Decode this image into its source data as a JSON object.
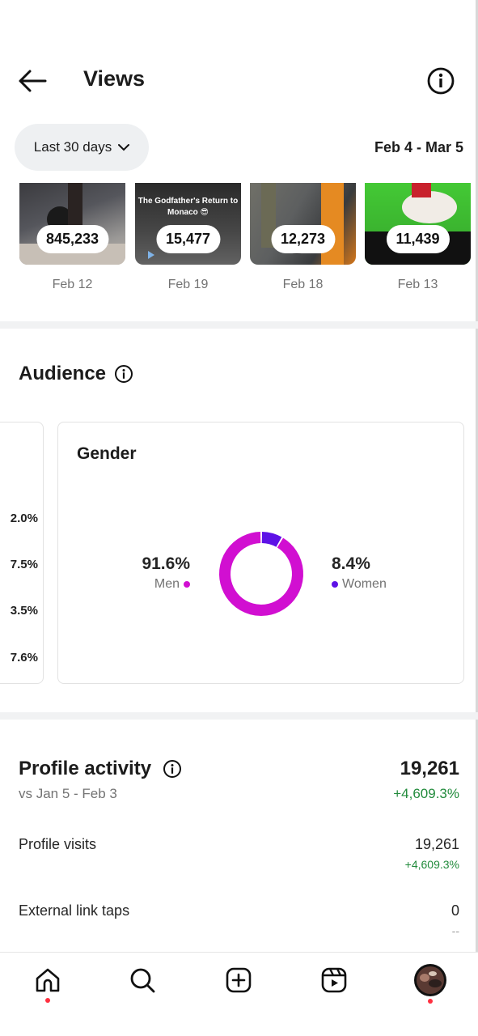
{
  "header": {
    "title": "Views"
  },
  "filter": {
    "range_label": "Last 30 days",
    "date_range": "Feb 4 - Mar 5"
  },
  "thumbnails": [
    {
      "views": "845,233",
      "date": "Feb 12"
    },
    {
      "views": "15,477",
      "date": "Feb 19",
      "caption": "The Godfather's Return to Monaco 😎"
    },
    {
      "views": "12,273",
      "date": "Feb 18"
    },
    {
      "views": "11,439",
      "date": "Feb 13"
    }
  ],
  "audience": {
    "title": "Audience",
    "age_values": [
      "2.0%",
      "7.5%",
      "3.5%",
      "7.6%"
    ],
    "gender": {
      "title": "Gender",
      "men": {
        "pct": "91.6%",
        "label": "Men",
        "value": 91.6,
        "color": "#d10fd1"
      },
      "women": {
        "pct": "8.4%",
        "label": "Women",
        "value": 8.4,
        "color": "#5d11e6"
      }
    }
  },
  "profile_activity": {
    "title": "Profile activity",
    "comparison": "vs Jan 5 - Feb 3",
    "total": "19,261",
    "change": "+4,609.3%",
    "rows": [
      {
        "label": "Profile visits",
        "value": "19,261",
        "change": "+4,609.3%"
      },
      {
        "label": "External link taps",
        "value": "0",
        "change": "--"
      }
    ]
  },
  "nav": [
    "home-icon",
    "search-icon",
    "create-icon",
    "reels-icon",
    "profile-avatar"
  ]
}
